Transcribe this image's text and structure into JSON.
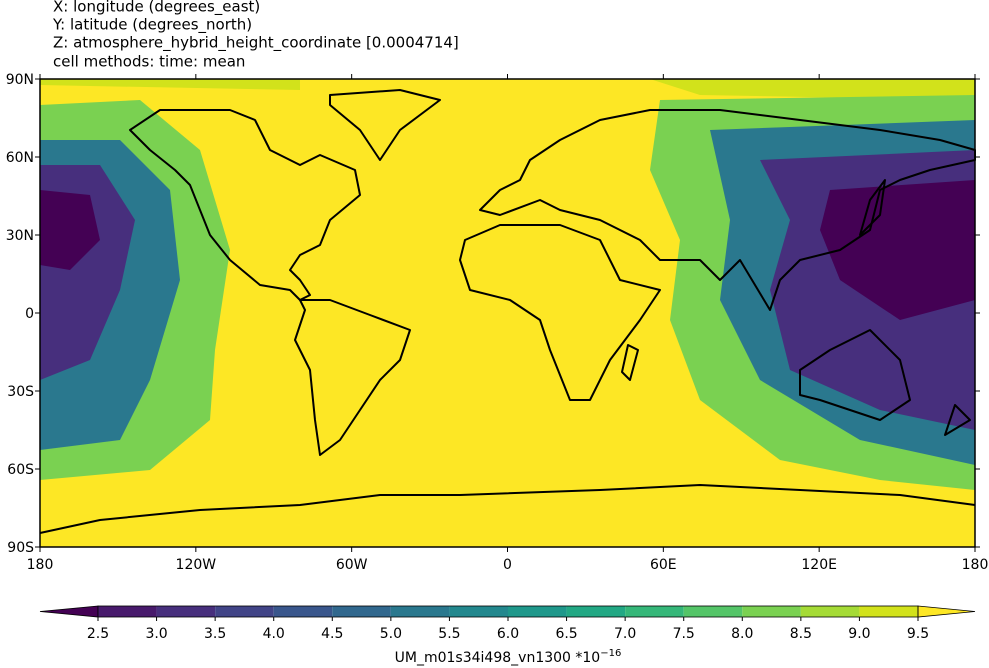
{
  "header": {
    "lines": [
      "X: longitude  (degrees_east)",
      "Y: latitude  (degrees_north)",
      "Z: atmosphere_hybrid_height_coordinate [0.0004714]",
      "cell methods: time: mean"
    ]
  },
  "map": {
    "type": "contour-map",
    "xlim": [
      -180,
      180
    ],
    "ylim": [
      -90,
      90
    ],
    "xticks": [
      {
        "value": -180,
        "label": "180"
      },
      {
        "value": -120,
        "label": "120W"
      },
      {
        "value": -60,
        "label": "60W"
      },
      0,
      {
        "value": 60,
        "label": "60E"
      },
      {
        "value": 120,
        "label": "120E"
      },
      {
        "value": 180,
        "label": "180"
      }
    ],
    "yticks": [
      {
        "value": 90,
        "label": "90N"
      },
      {
        "value": 60,
        "label": "60N"
      },
      {
        "value": 30,
        "label": "30N"
      },
      0,
      {
        "value": -30,
        "label": "30S"
      },
      {
        "value": -60,
        "label": "60S"
      },
      {
        "value": -90,
        "label": "90S"
      }
    ]
  },
  "colorbar": {
    "lim": [
      2.5,
      9.5
    ],
    "ticks": [
      2.5,
      {
        "value": 3,
        "label": "3.0"
      },
      3.5,
      {
        "value": 4,
        "label": "4.0"
      },
      4.5,
      {
        "value": 5,
        "label": "5.0"
      },
      5.5,
      {
        "value": 6,
        "label": "6.0"
      },
      6.5,
      {
        "value": 7,
        "label": "7.0"
      },
      7.5,
      {
        "value": 8,
        "label": "8.0"
      },
      8.5,
      {
        "value": 9,
        "label": "9.0"
      },
      9.5
    ],
    "colors": [
      "#440154",
      "#481a6c",
      "#472f7d",
      "#414487",
      "#39568c",
      "#31688e",
      "#2a788e",
      "#23888e",
      "#1f988b",
      "#22a884",
      "#35b779",
      "#54c568",
      "#7ad151",
      "#a5db36",
      "#d2e21b",
      "#fde725"
    ],
    "label": "UM_m01s34i498_vn1300 *10",
    "label_exponent": "−16"
  }
}
